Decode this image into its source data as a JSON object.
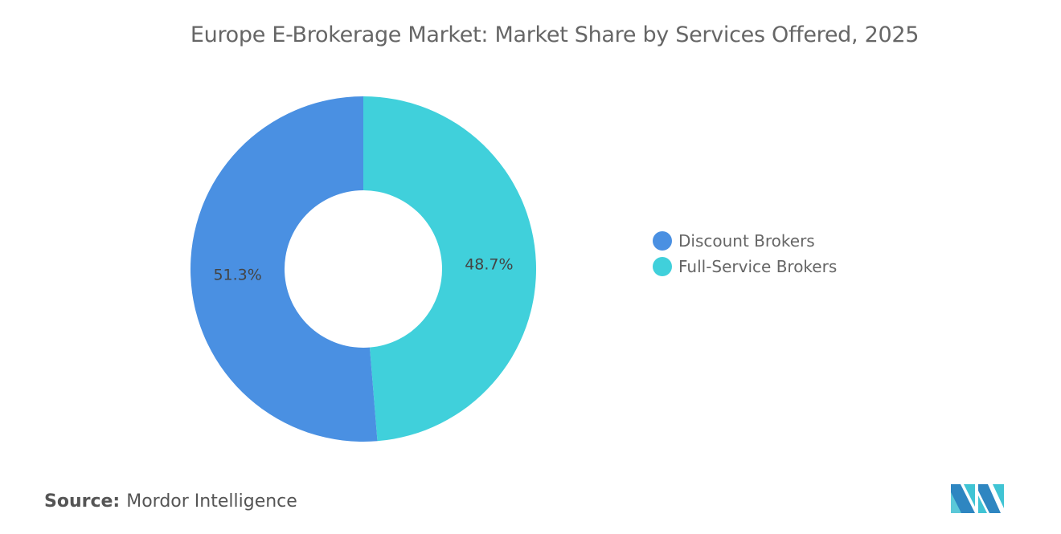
{
  "title": "Europe E-Brokerage Market: Market Share by Services Offered, 2025",
  "chart_data": {
    "type": "pie",
    "donut": true,
    "title": "Europe E-Brokerage Market: Market Share by Services Offered, 2025",
    "slices": [
      {
        "name": "Full-Service Brokers",
        "value": 48.7,
        "label": "48.7%",
        "color": "#40D0DB"
      },
      {
        "name": "Discount Brokers",
        "value": 51.3,
        "label": "51.3%",
        "color": "#4A90E2"
      }
    ],
    "legend": {
      "placement": "right",
      "items": [
        {
          "label": "Discount Brokers",
          "color": "#4A90E2"
        },
        {
          "label": "Full-Service Brokers",
          "color": "#40D0DB"
        }
      ]
    }
  },
  "source": {
    "label": "Source:",
    "value": "Mordor Intelligence"
  }
}
